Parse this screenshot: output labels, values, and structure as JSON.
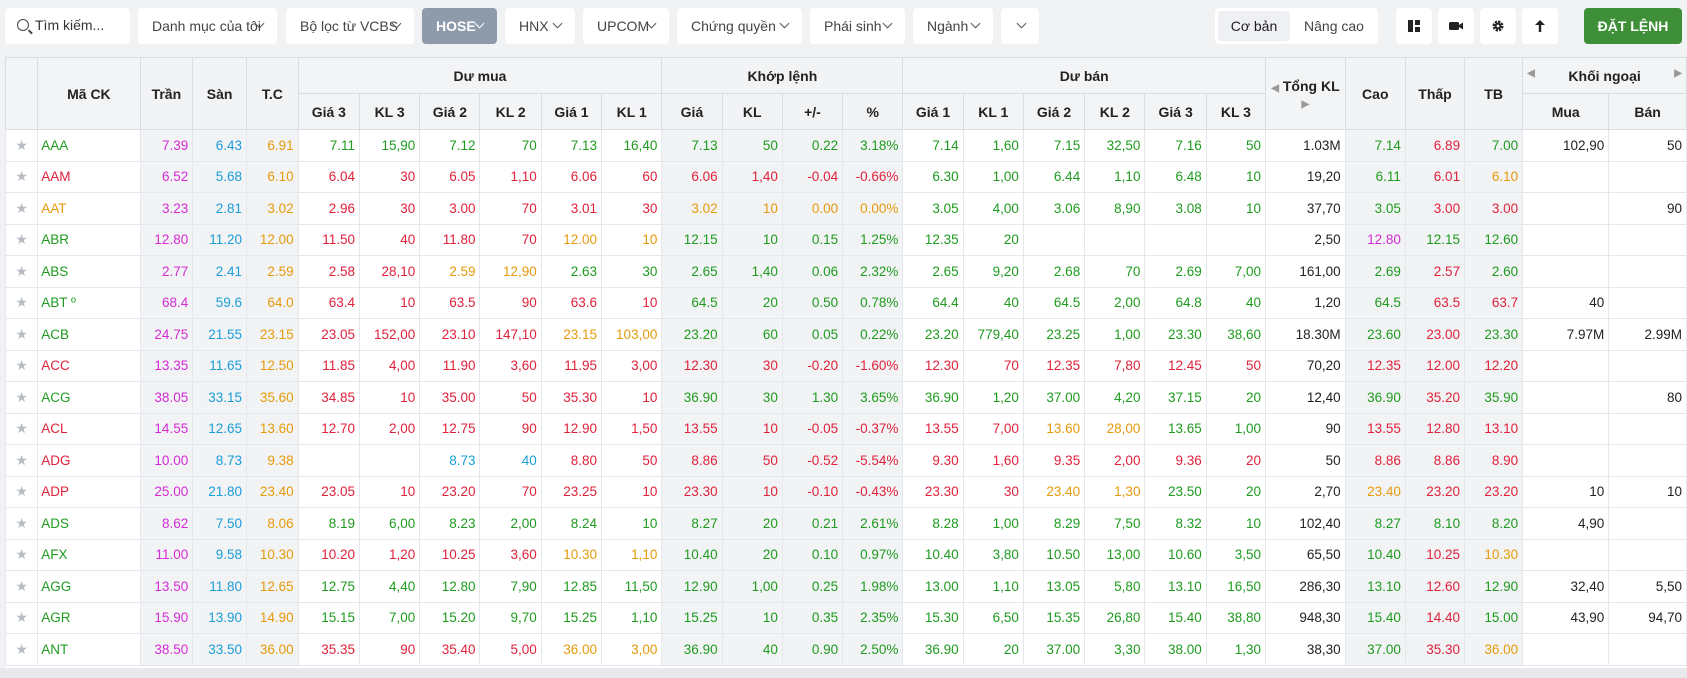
{
  "toolbar": {
    "search_placeholder": "Tìm kiếm...",
    "dropdowns": [
      {
        "label": "Danh mục của tôi"
      },
      {
        "label": "Bộ lọc từ VCBS"
      },
      {
        "label": "HOSE"
      },
      {
        "label": "HNX"
      },
      {
        "label": "UPCOM"
      },
      {
        "label": "Chứng quyền"
      },
      {
        "label": "Phái sinh"
      },
      {
        "label": "Ngành"
      }
    ],
    "mode_basic": "Cơ bản",
    "mode_advanced": "Nâng cao",
    "order_button": "ĐẶT LỆNH"
  },
  "headers": {
    "symbol": "Mã CK",
    "ceiling": "Trần",
    "floor": "Sàn",
    "ref": "T.C",
    "bid_group": "Dư mua",
    "match_group": "Khớp lệnh",
    "ask_group": "Dư bán",
    "price3": "Giá 3",
    "vol3": "KL 3",
    "price2": "Giá 2",
    "vol2": "KL 2",
    "price1": "Giá 1",
    "vol1": "KL 1",
    "match_price": "Giá",
    "match_vol": "KL",
    "change": "+/-",
    "pct": "%",
    "total_vol": "Tổng KL",
    "high": "Cao",
    "low": "Thấp",
    "avg": "TB",
    "foreign_group": "Khối ngoại",
    "foreign_buy": "Mua",
    "foreign_sell": "Bán"
  },
  "colors": {
    "up": "#1e9b1e",
    "down": "#e0213a",
    "ref": "#e59a0b",
    "ceiling": "#d42bd6",
    "floor": "#1a9dd9"
  },
  "rows": [
    {
      "sym": "AAA",
      "ceil": "7.39",
      "floor": "6.43",
      "ref": "6.91",
      "b3": "7.11",
      "bv3": "15,90",
      "b2": "7.12",
      "bv2": "70",
      "b1": "7.13",
      "bv1": "16,40",
      "mp": "7.13",
      "mv": "50",
      "ch": "0.22",
      "pct": "3.18%",
      "a1": "7.14",
      "av1": "1,60",
      "a2": "7.15",
      "av2": "32,50",
      "a3": "7.16",
      "av3": "50",
      "tot": "1.03M",
      "hi": "7.14",
      "lo": "6.89",
      "avg": "7.00",
      "fb": "102,90",
      "fs": "50",
      "cl": {
        "sym": "u",
        "b3": "u",
        "b2": "u",
        "b1": "u",
        "mp": "u",
        "a1": "u",
        "a2": "u",
        "a3": "u",
        "hi": "u",
        "lo": "d",
        "avg": "u"
      }
    },
    {
      "sym": "AAM",
      "ceil": "6.52",
      "floor": "5.68",
      "ref": "6.10",
      "b3": "6.04",
      "bv3": "30",
      "b2": "6.05",
      "bv2": "1,10",
      "b1": "6.06",
      "bv1": "60",
      "mp": "6.06",
      "mv": "1,40",
      "ch": "-0.04",
      "pct": "-0.66%",
      "a1": "6.30",
      "av1": "1,00",
      "a2": "6.44",
      "av2": "1,10",
      "a3": "6.48",
      "av3": "10",
      "tot": "19,20",
      "hi": "6.11",
      "lo": "6.01",
      "avg": "6.10",
      "fb": "",
      "fs": "",
      "cl": {
        "sym": "d",
        "b3": "d",
        "b2": "d",
        "b1": "d",
        "mp": "d",
        "a1": "u",
        "a2": "u",
        "a3": "u",
        "hi": "u",
        "lo": "d",
        "avg": "r"
      }
    },
    {
      "sym": "AAT",
      "ceil": "3.23",
      "floor": "2.81",
      "ref": "3.02",
      "b3": "2.96",
      "bv3": "30",
      "b2": "3.00",
      "bv2": "70",
      "b1": "3.01",
      "bv1": "30",
      "mp": "3.02",
      "mv": "10",
      "ch": "0.00",
      "pct": "0.00%",
      "a1": "3.05",
      "av1": "4,00",
      "a2": "3.06",
      "av2": "8,90",
      "a3": "3.08",
      "av3": "10",
      "tot": "37,70",
      "hi": "3.05",
      "lo": "3.00",
      "avg": "3.00",
      "fb": "",
      "fs": "90",
      "cl": {
        "sym": "r",
        "b3": "d",
        "b2": "d",
        "b1": "d",
        "mp": "r",
        "a1": "u",
        "a2": "u",
        "a3": "u",
        "hi": "u",
        "lo": "d",
        "avg": "d"
      }
    },
    {
      "sym": "ABR",
      "ceil": "12.80",
      "floor": "11.20",
      "ref": "12.00",
      "b3": "11.50",
      "bv3": "40",
      "b2": "11.80",
      "bv2": "70",
      "b1": "12.00",
      "bv1": "10",
      "mp": "12.15",
      "mv": "10",
      "ch": "0.15",
      "pct": "1.25%",
      "a1": "12.35",
      "av1": "20",
      "a2": "",
      "av2": "",
      "a3": "",
      "av3": "",
      "tot": "2,50",
      "hi": "12.80",
      "lo": "12.15",
      "avg": "12.60",
      "fb": "",
      "fs": "",
      "cl": {
        "sym": "u",
        "b3": "d",
        "b2": "d",
        "b1": "r",
        "mp": "u",
        "a1": "u",
        "a2": "u",
        "a3": "u",
        "hi": "c",
        "lo": "u",
        "avg": "u"
      }
    },
    {
      "sym": "ABS",
      "ceil": "2.77",
      "floor": "2.41",
      "ref": "2.59",
      "b3": "2.58",
      "bv3": "28,10",
      "b2": "2.59",
      "bv2": "12,90",
      "b1": "2.63",
      "bv1": "30",
      "mp": "2.65",
      "mv": "1,40",
      "ch": "0.06",
      "pct": "2.32%",
      "a1": "2.65",
      "av1": "9,20",
      "a2": "2.68",
      "av2": "70",
      "a3": "2.69",
      "av3": "7,00",
      "tot": "161,00",
      "hi": "2.69",
      "lo": "2.57",
      "avg": "2.60",
      "fb": "",
      "fs": "",
      "cl": {
        "sym": "u",
        "b3": "d",
        "b2": "r",
        "b1": "u",
        "mp": "u",
        "a1": "u",
        "a2": "u",
        "a3": "u",
        "hi": "u",
        "lo": "d",
        "avg": "u"
      }
    },
    {
      "sym": "ABT º",
      "ceil": "68.4",
      "floor": "59.6",
      "ref": "64.0",
      "b3": "63.4",
      "bv3": "10",
      "b2": "63.5",
      "bv2": "90",
      "b1": "63.6",
      "bv1": "10",
      "mp": "64.5",
      "mv": "20",
      "ch": "0.50",
      "pct": "0.78%",
      "a1": "64.4",
      "av1": "40",
      "a2": "64.5",
      "av2": "2,00",
      "a3": "64.8",
      "av3": "40",
      "tot": "1,20",
      "hi": "64.5",
      "lo": "63.5",
      "avg": "63.7",
      "fb": "40",
      "fs": "",
      "cl": {
        "sym": "u",
        "b3": "d",
        "b2": "d",
        "b1": "d",
        "mp": "u",
        "a1": "u",
        "a2": "u",
        "a3": "u",
        "hi": "u",
        "lo": "d",
        "avg": "d"
      }
    },
    {
      "sym": "ACB",
      "ceil": "24.75",
      "floor": "21.55",
      "ref": "23.15",
      "b3": "23.05",
      "bv3": "152,00",
      "b2": "23.10",
      "bv2": "147,10",
      "b1": "23.15",
      "bv1": "103,00",
      "mp": "23.20",
      "mv": "60",
      "ch": "0.05",
      "pct": "0.22%",
      "a1": "23.20",
      "av1": "779,40",
      "a2": "23.25",
      "av2": "1,00",
      "a3": "23.30",
      "av3": "38,60",
      "tot": "18.30M",
      "hi": "23.60",
      "lo": "23.00",
      "avg": "23.30",
      "fb": "7.97M",
      "fs": "2.99M",
      "cl": {
        "sym": "u",
        "b3": "d",
        "b2": "d",
        "b1": "r",
        "mp": "u",
        "a1": "u",
        "a2": "u",
        "a3": "u",
        "hi": "u",
        "lo": "d",
        "avg": "u"
      }
    },
    {
      "sym": "ACC",
      "ceil": "13.35",
      "floor": "11.65",
      "ref": "12.50",
      "b3": "11.85",
      "bv3": "4,00",
      "b2": "11.90",
      "bv2": "3,60",
      "b1": "11.95",
      "bv1": "3,00",
      "mp": "12.30",
      "mv": "30",
      "ch": "-0.20",
      "pct": "-1.60%",
      "a1": "12.30",
      "av1": "70",
      "a2": "12.35",
      "av2": "7,80",
      "a3": "12.45",
      "av3": "50",
      "tot": "70,20",
      "hi": "12.35",
      "lo": "12.00",
      "avg": "12.20",
      "fb": "",
      "fs": "",
      "cl": {
        "sym": "d",
        "b3": "d",
        "b2": "d",
        "b1": "d",
        "mp": "d",
        "a1": "d",
        "a2": "d",
        "a3": "d",
        "hi": "d",
        "lo": "d",
        "avg": "d"
      }
    },
    {
      "sym": "ACG",
      "ceil": "38.05",
      "floor": "33.15",
      "ref": "35.60",
      "b3": "34.85",
      "bv3": "10",
      "b2": "35.00",
      "bv2": "50",
      "b1": "35.30",
      "bv1": "10",
      "mp": "36.90",
      "mv": "30",
      "ch": "1.30",
      "pct": "3.65%",
      "a1": "36.90",
      "av1": "1,20",
      "a2": "37.00",
      "av2": "4,20",
      "a3": "37.15",
      "av3": "20",
      "tot": "12,40",
      "hi": "36.90",
      "lo": "35.20",
      "avg": "35.90",
      "fb": "",
      "fs": "80",
      "cl": {
        "sym": "u",
        "b3": "d",
        "b2": "d",
        "b1": "d",
        "mp": "u",
        "a1": "u",
        "a2": "u",
        "a3": "u",
        "hi": "u",
        "lo": "d",
        "avg": "u"
      }
    },
    {
      "sym": "ACL",
      "ceil": "14.55",
      "floor": "12.65",
      "ref": "13.60",
      "b3": "12.70",
      "bv3": "2,00",
      "b2": "12.75",
      "bv2": "90",
      "b1": "12.90",
      "bv1": "1,50",
      "mp": "13.55",
      "mv": "10",
      "ch": "-0.05",
      "pct": "-0.37%",
      "a1": "13.55",
      "av1": "7,00",
      "a2": "13.60",
      "av2": "28,00",
      "a3": "13.65",
      "av3": "1,00",
      "tot": "90",
      "hi": "13.55",
      "lo": "12.80",
      "avg": "13.10",
      "fb": "",
      "fs": "",
      "cl": {
        "sym": "d",
        "b3": "d",
        "b2": "d",
        "b1": "d",
        "mp": "d",
        "a1": "d",
        "a2": "r",
        "a3": "u",
        "hi": "d",
        "lo": "d",
        "avg": "d"
      }
    },
    {
      "sym": "ADG",
      "ceil": "10.00",
      "floor": "8.73",
      "ref": "9.38",
      "b3": "",
      "bv3": "",
      "b2": "8.73",
      "bv2": "40",
      "b1": "8.80",
      "bv1": "50",
      "mp": "8.86",
      "mv": "50",
      "ch": "-0.52",
      "pct": "-5.54%",
      "a1": "9.30",
      "av1": "1,60",
      "a2": "9.35",
      "av2": "2,00",
      "a3": "9.36",
      "av3": "20",
      "tot": "50",
      "hi": "8.86",
      "lo": "8.86",
      "avg": "8.90",
      "fb": "",
      "fs": "",
      "cl": {
        "sym": "d",
        "b3": "d",
        "b2": "f",
        "b1": "d",
        "mp": "d",
        "a1": "d",
        "a2": "d",
        "a3": "d",
        "hi": "d",
        "lo": "d",
        "avg": "d"
      }
    },
    {
      "sym": "ADP",
      "ceil": "25.00",
      "floor": "21.80",
      "ref": "23.40",
      "b3": "23.05",
      "bv3": "10",
      "b2": "23.20",
      "bv2": "70",
      "b1": "23.25",
      "bv1": "10",
      "mp": "23.30",
      "mv": "10",
      "ch": "-0.10",
      "pct": "-0.43%",
      "a1": "23.30",
      "av1": "30",
      "a2": "23.40",
      "av2": "1,30",
      "a3": "23.50",
      "av3": "20",
      "tot": "2,70",
      "hi": "23.40",
      "lo": "23.20",
      "avg": "23.20",
      "fb": "10",
      "fs": "10",
      "cl": {
        "sym": "d",
        "b3": "d",
        "b2": "d",
        "b1": "d",
        "mp": "d",
        "a1": "d",
        "a2": "r",
        "a3": "u",
        "hi": "r",
        "lo": "d",
        "avg": "d"
      }
    },
    {
      "sym": "ADS",
      "ceil": "8.62",
      "floor": "7.50",
      "ref": "8.06",
      "b3": "8.19",
      "bv3": "6,00",
      "b2": "8.23",
      "bv2": "2,00",
      "b1": "8.24",
      "bv1": "10",
      "mp": "8.27",
      "mv": "20",
      "ch": "0.21",
      "pct": "2.61%",
      "a1": "8.28",
      "av1": "1,00",
      "a2": "8.29",
      "av2": "7,50",
      "a3": "8.32",
      "av3": "10",
      "tot": "102,40",
      "hi": "8.27",
      "lo": "8.10",
      "avg": "8.20",
      "fb": "4,90",
      "fs": "",
      "cl": {
        "sym": "u",
        "b3": "u",
        "b2": "u",
        "b1": "u",
        "mp": "u",
        "a1": "u",
        "a2": "u",
        "a3": "u",
        "hi": "u",
        "lo": "u",
        "avg": "u"
      }
    },
    {
      "sym": "AFX",
      "ceil": "11.00",
      "floor": "9.58",
      "ref": "10.30",
      "b3": "10.20",
      "bv3": "1,20",
      "b2": "10.25",
      "bv2": "3,60",
      "b1": "10.30",
      "bv1": "1,10",
      "mp": "10.40",
      "mv": "20",
      "ch": "0.10",
      "pct": "0.97%",
      "a1": "10.40",
      "av1": "3,80",
      "a2": "10.50",
      "av2": "13,00",
      "a3": "10.60",
      "av3": "3,50",
      "tot": "65,50",
      "hi": "10.40",
      "lo": "10.25",
      "avg": "10.30",
      "fb": "",
      "fs": "",
      "cl": {
        "sym": "u",
        "b3": "d",
        "b2": "d",
        "b1": "r",
        "mp": "u",
        "a1": "u",
        "a2": "u",
        "a3": "u",
        "hi": "u",
        "lo": "d",
        "avg": "r"
      }
    },
    {
      "sym": "AGG",
      "ceil": "13.50",
      "floor": "11.80",
      "ref": "12.65",
      "b3": "12.75",
      "bv3": "4,40",
      "b2": "12.80",
      "bv2": "7,90",
      "b1": "12.85",
      "bv1": "11,50",
      "mp": "12.90",
      "mv": "1,00",
      "ch": "0.25",
      "pct": "1.98%",
      "a1": "13.00",
      "av1": "1,10",
      "a2": "13.05",
      "av2": "5,80",
      "a3": "13.10",
      "av3": "16,50",
      "tot": "286,30",
      "hi": "13.10",
      "lo": "12.60",
      "avg": "12.90",
      "fb": "32,40",
      "fs": "5,50",
      "cl": {
        "sym": "u",
        "b3": "u",
        "b2": "u",
        "b1": "u",
        "mp": "u",
        "a1": "u",
        "a2": "u",
        "a3": "u",
        "hi": "u",
        "lo": "d",
        "avg": "u"
      }
    },
    {
      "sym": "AGR",
      "ceil": "15.90",
      "floor": "13.90",
      "ref": "14.90",
      "b3": "15.15",
      "bv3": "7,00",
      "b2": "15.20",
      "bv2": "9,70",
      "b1": "15.25",
      "bv1": "1,10",
      "mp": "15.25",
      "mv": "10",
      "ch": "0.35",
      "pct": "2.35%",
      "a1": "15.30",
      "av1": "6,50",
      "a2": "15.35",
      "av2": "26,80",
      "a3": "15.40",
      "av3": "38,80",
      "tot": "948,30",
      "hi": "15.40",
      "lo": "14.40",
      "avg": "15.00",
      "fb": "43,90",
      "fs": "94,70",
      "cl": {
        "sym": "u",
        "b3": "u",
        "b2": "u",
        "b1": "u",
        "mp": "u",
        "a1": "u",
        "a2": "u",
        "a3": "u",
        "hi": "u",
        "lo": "d",
        "avg": "u"
      }
    },
    {
      "sym": "ANT",
      "ceil": "38.50",
      "floor": "33.50",
      "ref": "36.00",
      "b3": "35.35",
      "bv3": "90",
      "b2": "35.40",
      "bv2": "5,00",
      "b1": "36.00",
      "bv1": "3,00",
      "mp": "36.90",
      "mv": "40",
      "ch": "0.90",
      "pct": "2.50%",
      "a1": "36.90",
      "av1": "20",
      "a2": "37.00",
      "av2": "3,30",
      "a3": "38.00",
      "av3": "1,30",
      "tot": "38,30",
      "hi": "37.00",
      "lo": "35.30",
      "avg": "36.00",
      "fb": "",
      "fs": "",
      "cl": {
        "sym": "u",
        "b3": "d",
        "b2": "d",
        "b1": "r",
        "mp": "u",
        "a1": "u",
        "a2": "u",
        "a3": "u",
        "hi": "u",
        "lo": "d",
        "avg": "r"
      }
    }
  ]
}
